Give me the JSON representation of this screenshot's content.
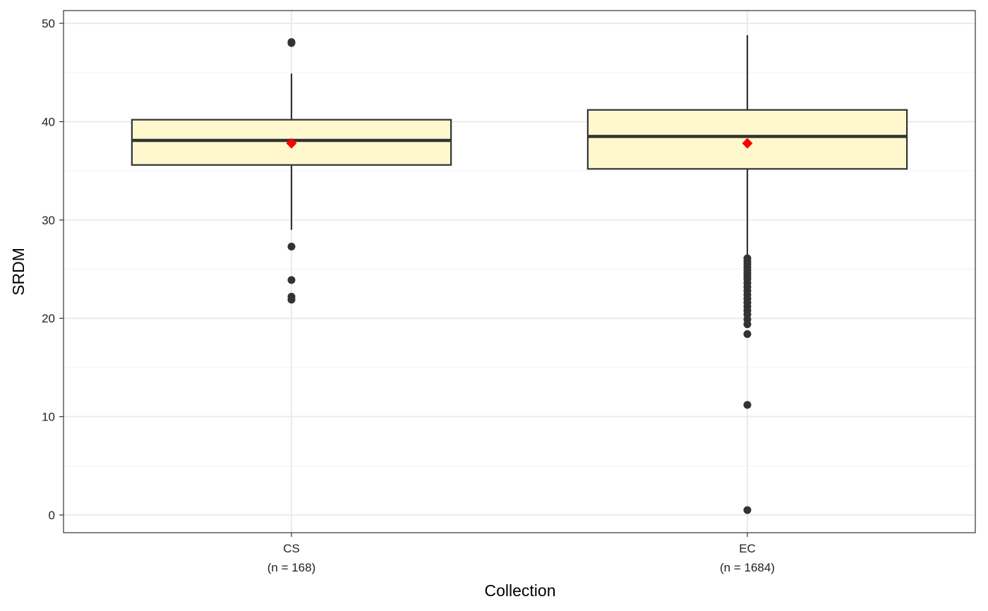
{
  "chart_data": {
    "type": "boxplot",
    "xlabel": "Collection",
    "ylabel": "SRDM",
    "ylim": [
      -1.8,
      51.3
    ],
    "yticks": [
      0,
      10,
      20,
      30,
      40,
      50
    ],
    "grid": true,
    "categories": [
      {
        "label": "CS",
        "sublabel": "(n = 168)"
      },
      {
        "label": "EC",
        "sublabel": "(n = 1684)"
      }
    ],
    "boxes": [
      {
        "category": "CS",
        "whisker_low": 29.0,
        "q1": 35.6,
        "median": 38.1,
        "q3": 40.2,
        "whisker_high": 44.9,
        "mean": 37.8,
        "outliers": [
          48.0,
          48.1,
          27.3,
          23.9,
          22.2,
          21.9
        ]
      },
      {
        "category": "EC",
        "whisker_low": 26.3,
        "q1": 35.2,
        "median": 38.5,
        "q3": 41.2,
        "whisker_high": 48.8,
        "mean": 37.8,
        "outliers": [
          26.1,
          25.8,
          25.5,
          25.2,
          24.9,
          24.6,
          24.3,
          24.0,
          23.6,
          23.2,
          22.8,
          22.4,
          22.0,
          21.6,
          21.2,
          20.8,
          20.4,
          19.9,
          19.4,
          18.4,
          11.2,
          0.5
        ]
      }
    ],
    "colors": {
      "box_fill": "#fff8cf",
      "box_stroke": "#333333",
      "point": "#333333",
      "mean": "#ff0000",
      "grid_major": "#ebebeb",
      "grid_minor": "#f3f3f3",
      "panel_border": "#333333"
    }
  }
}
